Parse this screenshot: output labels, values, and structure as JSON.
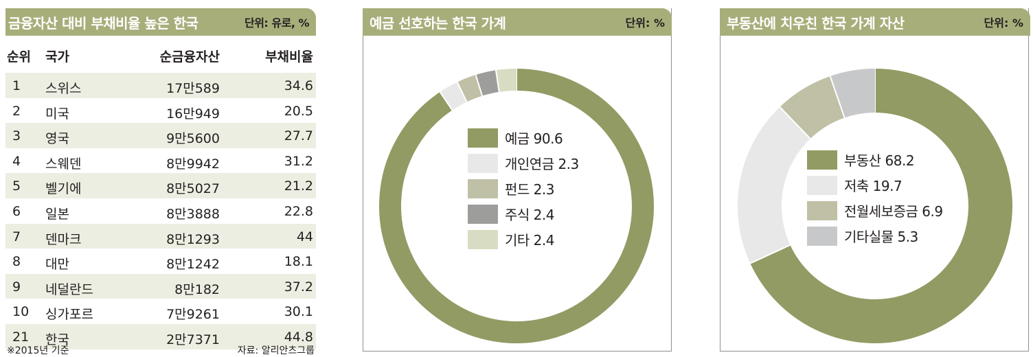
{
  "table": {
    "title": "금융자산 대비 부채비율 높은 한국",
    "unit": "단위: 유로, %",
    "columns": [
      "순위",
      "국가",
      "순금융자산",
      "부채비율"
    ],
    "rows": [
      {
        "rank": "1",
        "country": "스위스",
        "assets": "17만589",
        "ratio": "34.6"
      },
      {
        "rank": "2",
        "country": "미국",
        "assets": "16만949",
        "ratio": "20.5"
      },
      {
        "rank": "3",
        "country": "영국",
        "assets": "9만5600",
        "ratio": "27.7"
      },
      {
        "rank": "4",
        "country": "스웨덴",
        "assets": "8만9942",
        "ratio": "31.2"
      },
      {
        "rank": "5",
        "country": "벨기에",
        "assets": "8만5027",
        "ratio": "21.2"
      },
      {
        "rank": "6",
        "country": "일본",
        "assets": "8만3888",
        "ratio": "22.8"
      },
      {
        "rank": "7",
        "country": "덴마크",
        "assets": "8만1293",
        "ratio": "44"
      },
      {
        "rank": "8",
        "country": "대만",
        "assets": "8만1242",
        "ratio": "18.1"
      },
      {
        "rank": "9",
        "country": "네덜란드",
        "assets": "8만182",
        "ratio": "37.2"
      },
      {
        "rank": "10",
        "country": "싱가포르",
        "assets": "7만9261",
        "ratio": "30.1"
      },
      {
        "rank": "21",
        "country": "한국",
        "assets": "2만7371",
        "ratio": "44.8"
      }
    ],
    "footnote": "※2015년 기준",
    "source": "자료: 알리안츠그룹"
  },
  "colors": {
    "header": "#a8ae7a",
    "row_alt": "#edeee2",
    "border": "#8f8f8f"
  },
  "chart_data": [
    {
      "type": "pie",
      "title": "예금 선호하는 한국 가계",
      "unit": "단위: %",
      "donut": true,
      "slices": [
        {
          "label": "예금",
          "value": 90.6,
          "color": "#919b63",
          "legend": "예금 90.6"
        },
        {
          "label": "개인연금",
          "value": 2.3,
          "color": "#e8e8e8",
          "legend": "개인연금 2.3"
        },
        {
          "label": "펀드",
          "value": 2.3,
          "color": "#c0c0a6",
          "legend": "펀드 2.3"
        },
        {
          "label": "주식",
          "value": 2.4,
          "color": "#9d9e9c",
          "legend": "주식 2.4"
        },
        {
          "label": "기타",
          "value": 2.4,
          "color": "#d8dcc2",
          "legend": "기타 2.4"
        }
      ]
    },
    {
      "type": "pie",
      "title": "부동산에 치우친 한국 가계 자산",
      "unit": "단위: %",
      "donut": true,
      "slices": [
        {
          "label": "부동산",
          "value": 68.2,
          "color": "#919b63",
          "legend": "부동산 68.2"
        },
        {
          "label": "저축",
          "value": 19.7,
          "color": "#e8e8e8",
          "legend": "저축 19.7"
        },
        {
          "label": "전월세보증금",
          "value": 6.9,
          "color": "#c0c0a6",
          "legend": "전월세보증금 6.9"
        },
        {
          "label": "기타실물",
          "value": 5.3,
          "color": "#c7c8ca",
          "legend": "기타실물 5.3"
        }
      ]
    }
  ]
}
